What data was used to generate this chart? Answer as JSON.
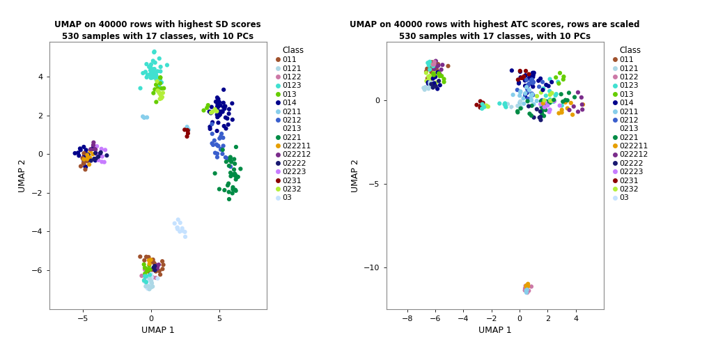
{
  "title1": "UMAP on 40000 rows with highest SD scores\n530 samples with 17 classes, with 10 PCs",
  "title2": "UMAP on 40000 rows with highest ATC scores, rows are scaled\n530 samples with 17 classes, with 10 PCs",
  "xlabel": "UMAP 1",
  "ylabel": "UMAP 2",
  "legend_title": "Class",
  "classes": [
    "011",
    "0121",
    "0122",
    "0123",
    "013",
    "014",
    "0211",
    "0212",
    "0213",
    "0221",
    "022211",
    "022212",
    "02222",
    "02223",
    "0231",
    "0232",
    "03"
  ],
  "colors": {
    "011": "#A0522D",
    "0121": "#ADD8E6",
    "0122": "#CC79A7",
    "0123": "#40E0D0",
    "013": "#66CD00",
    "014": "#00008B",
    "0211": "#87CEEB",
    "0212": "#3A5FCD",
    "0213": "#FFFFFF",
    "0221": "#008B45",
    "022211": "#E69F00",
    "022212": "#7B2D8B",
    "02222": "#191970",
    "02223": "#C77CFF",
    "0231": "#8B0000",
    "0232": "#B3EE3A",
    "03": "#C6E2FF"
  },
  "plot1_xlim": [
    -7.5,
    8.5
  ],
  "plot1_ylim": [
    -8.0,
    5.8
  ],
  "plot2_xlim": [
    -9.5,
    6.0
  ],
  "plot2_ylim": [
    -12.5,
    3.5
  ],
  "plot1_xticks": [
    -5,
    0,
    5
  ],
  "plot1_yticks": [
    -6,
    -4,
    -2,
    0,
    2,
    4
  ],
  "plot2_xticks": [
    -8,
    -6,
    -4,
    -2,
    0,
    2,
    4
  ],
  "plot2_yticks": [
    -10,
    -5,
    0
  ],
  "point_size": 20,
  "background_color": "#FFFFFF"
}
